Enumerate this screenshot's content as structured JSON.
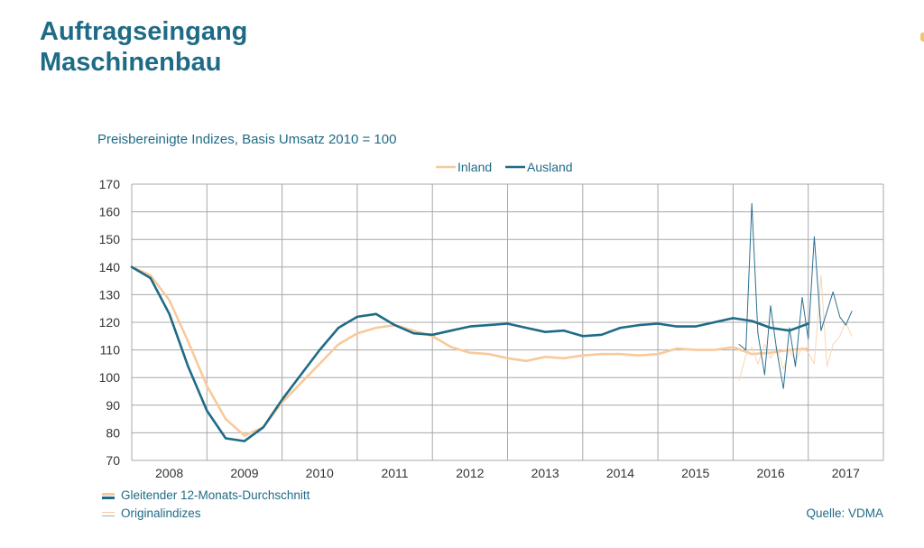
{
  "title_lines": [
    "Auftragseingang",
    "Maschinenbau"
  ],
  "subtitle": "Preisbereinigte Indizes, Basis Umsatz 2010 = 100",
  "legend_top": [
    "Inland",
    "Ausland"
  ],
  "legend_bottom": {
    "smoothed": "Gleitender 12-Monats-Durchschnitt",
    "original": "Originalindizes"
  },
  "source": "Quelle: VDMA",
  "colors": {
    "title": "#1f6b86",
    "inland": "#f8c99b",
    "ausland": "#1f6b86",
    "grid": "#a8a8a8"
  },
  "chart_data": {
    "type": "line",
    "ylim": [
      70,
      170
    ],
    "yticks": [
      70,
      80,
      90,
      100,
      110,
      120,
      130,
      140,
      150,
      160,
      170
    ],
    "xlim": [
      2007.5,
      2017.5
    ],
    "xticks": [
      "2008",
      "2009",
      "2010",
      "2011",
      "2012",
      "2013",
      "2014",
      "2015",
      "2016",
      "2017"
    ],
    "grid": true,
    "legend_position": "top-center",
    "series": [
      {
        "name": "Inland",
        "kind": "Gleitender 12-Monats-Durchschnitt",
        "x": [
          2007.5,
          2007.75,
          2008.0,
          2008.25,
          2008.5,
          2008.75,
          2009.0,
          2009.25,
          2009.5,
          2009.75,
          2010.0,
          2010.25,
          2010.5,
          2010.75,
          2011.0,
          2011.25,
          2011.5,
          2011.75,
          2012.0,
          2012.25,
          2012.5,
          2012.75,
          2013.0,
          2013.25,
          2013.5,
          2013.75,
          2014.0,
          2014.25,
          2014.5,
          2014.75,
          2015.0,
          2015.25,
          2015.5,
          2015.75,
          2016.0,
          2016.25,
          2016.5
        ],
        "values": [
          140,
          137,
          128,
          113,
          97,
          85,
          79,
          82,
          91,
          98,
          105,
          112,
          116,
          118,
          119,
          117,
          115,
          111,
          109,
          108.5,
          107,
          106,
          107.5,
          107,
          108,
          108.5,
          108.5,
          108,
          108.5,
          110.5,
          110,
          110,
          111,
          108.5,
          109,
          110,
          110.5
        ]
      },
      {
        "name": "Ausland",
        "kind": "Gleitender 12-Monats-Durchschnitt",
        "x": [
          2007.5,
          2007.75,
          2008.0,
          2008.25,
          2008.5,
          2008.75,
          2009.0,
          2009.25,
          2009.5,
          2009.75,
          2010.0,
          2010.25,
          2010.5,
          2010.75,
          2011.0,
          2011.25,
          2011.5,
          2011.75,
          2012.0,
          2012.25,
          2012.5,
          2012.75,
          2013.0,
          2013.25,
          2013.5,
          2013.75,
          2014.0,
          2014.25,
          2014.5,
          2014.75,
          2015.0,
          2015.25,
          2015.5,
          2015.75,
          2016.0,
          2016.25,
          2016.5
        ],
        "values": [
          140,
          136,
          123,
          104,
          88,
          78,
          77,
          82,
          92,
          101,
          110,
          118,
          122,
          123,
          119,
          116,
          115.5,
          117,
          118.5,
          119,
          119.5,
          118,
          116.5,
          117,
          115,
          115.5,
          118,
          119,
          119.5,
          118.5,
          118.5,
          120,
          121.5,
          120.5,
          118,
          117,
          119.5
        ]
      },
      {
        "name": "Inland",
        "kind": "Originalindizes",
        "x": [
          2015.58,
          2015.67,
          2015.75,
          2015.83,
          2015.92,
          2016.0,
          2016.08,
          2016.17,
          2016.25,
          2016.33,
          2016.42,
          2016.5,
          2016.58,
          2016.67,
          2016.75,
          2016.83,
          2016.92,
          2017.0,
          2017.08
        ],
        "values": [
          99,
          108,
          111,
          105,
          112,
          107,
          111,
          103,
          110,
          106,
          111,
          109,
          105,
          137,
          104,
          112,
          115,
          120,
          115
        ]
      },
      {
        "name": "Ausland",
        "kind": "Originalindizes",
        "x": [
          2015.58,
          2015.67,
          2015.75,
          2015.83,
          2015.92,
          2016.0,
          2016.08,
          2016.17,
          2016.25,
          2016.33,
          2016.42,
          2016.5,
          2016.58,
          2016.67,
          2016.75,
          2016.83,
          2016.92,
          2017.0,
          2017.08
        ],
        "values": [
          112,
          110,
          163,
          116,
          101,
          126,
          110,
          96,
          118,
          104,
          129,
          114,
          151,
          117,
          124,
          131,
          122,
          119,
          124
        ]
      }
    ]
  }
}
